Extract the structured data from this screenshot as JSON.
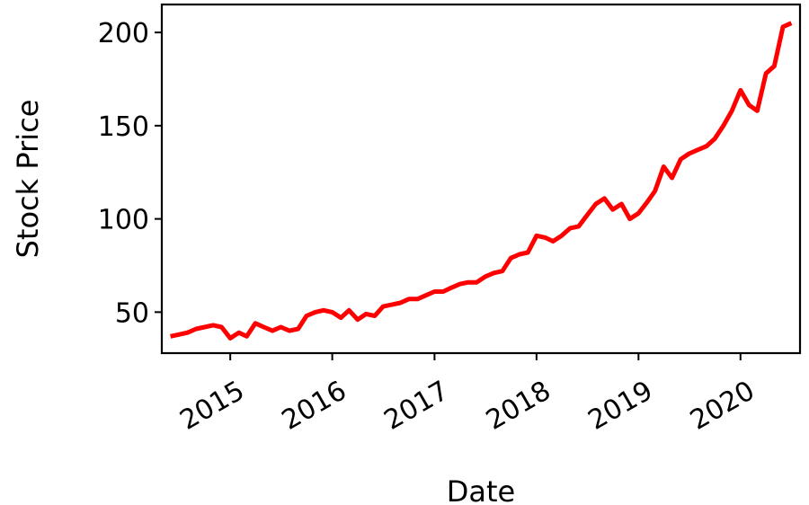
{
  "chart_data": {
    "type": "line",
    "xlabel": "Date",
    "ylabel": "Stock Price",
    "x_ticks": [
      "2015",
      "2016",
      "2017",
      "2018",
      "2019",
      "2020"
    ],
    "y_ticks": [
      50,
      100,
      150,
      200
    ],
    "xlim": [
      "2014-05-01",
      "2020-08-01"
    ],
    "ylim": [
      28,
      215
    ],
    "grid": false,
    "legend": "none",
    "series": [
      {
        "color": "#ff0000",
        "points": [
          [
            "2014-06-01",
            37
          ],
          [
            "2014-07-01",
            38
          ],
          [
            "2014-08-01",
            39
          ],
          [
            "2014-09-01",
            41
          ],
          [
            "2014-10-01",
            42
          ],
          [
            "2014-11-01",
            43
          ],
          [
            "2014-12-01",
            42
          ],
          [
            "2015-01-01",
            36
          ],
          [
            "2015-02-01",
            39
          ],
          [
            "2015-03-01",
            37
          ],
          [
            "2015-04-01",
            44
          ],
          [
            "2015-05-01",
            42
          ],
          [
            "2015-06-01",
            40
          ],
          [
            "2015-07-01",
            42
          ],
          [
            "2015-08-01",
            40
          ],
          [
            "2015-09-01",
            41
          ],
          [
            "2015-10-01",
            48
          ],
          [
            "2015-11-01",
            50
          ],
          [
            "2015-12-01",
            51
          ],
          [
            "2016-01-01",
            50
          ],
          [
            "2016-02-01",
            47
          ],
          [
            "2016-03-01",
            51
          ],
          [
            "2016-04-01",
            46
          ],
          [
            "2016-05-01",
            49
          ],
          [
            "2016-06-01",
            48
          ],
          [
            "2016-07-01",
            53
          ],
          [
            "2016-08-01",
            54
          ],
          [
            "2016-09-01",
            55
          ],
          [
            "2016-10-01",
            57
          ],
          [
            "2016-11-01",
            57
          ],
          [
            "2016-12-01",
            59
          ],
          [
            "2017-01-01",
            61
          ],
          [
            "2017-02-01",
            61
          ],
          [
            "2017-03-01",
            63
          ],
          [
            "2017-04-01",
            65
          ],
          [
            "2017-05-01",
            66
          ],
          [
            "2017-06-01",
            66
          ],
          [
            "2017-07-01",
            69
          ],
          [
            "2017-08-01",
            71
          ],
          [
            "2017-09-01",
            72
          ],
          [
            "2017-10-01",
            79
          ],
          [
            "2017-11-01",
            81
          ],
          [
            "2017-12-01",
            82
          ],
          [
            "2018-01-01",
            91
          ],
          [
            "2018-02-01",
            90
          ],
          [
            "2018-03-01",
            88
          ],
          [
            "2018-04-01",
            91
          ],
          [
            "2018-05-01",
            95
          ],
          [
            "2018-06-01",
            96
          ],
          [
            "2018-07-01",
            102
          ],
          [
            "2018-08-01",
            108
          ],
          [
            "2018-09-01",
            111
          ],
          [
            "2018-10-01",
            105
          ],
          [
            "2018-11-01",
            108
          ],
          [
            "2018-12-01",
            100
          ],
          [
            "2019-01-01",
            103
          ],
          [
            "2019-02-01",
            109
          ],
          [
            "2019-03-01",
            115
          ],
          [
            "2019-04-01",
            128
          ],
          [
            "2019-05-01",
            122
          ],
          [
            "2019-06-01",
            132
          ],
          [
            "2019-07-01",
            135
          ],
          [
            "2019-08-01",
            137
          ],
          [
            "2019-09-01",
            139
          ],
          [
            "2019-10-01",
            143
          ],
          [
            "2019-11-01",
            150
          ],
          [
            "2019-12-01",
            158
          ],
          [
            "2020-01-01",
            169
          ],
          [
            "2020-02-01",
            161
          ],
          [
            "2020-03-01",
            158
          ],
          [
            "2020-04-01",
            178
          ],
          [
            "2020-05-01",
            182
          ],
          [
            "2020-06-01",
            203
          ],
          [
            "2020-07-01",
            205
          ]
        ]
      }
    ]
  }
}
